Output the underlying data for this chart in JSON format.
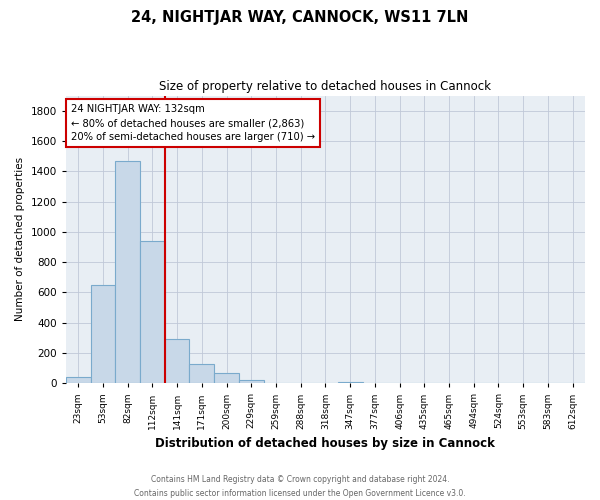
{
  "title": "24, NIGHTJAR WAY, CANNOCK, WS11 7LN",
  "subtitle": "Size of property relative to detached houses in Cannock",
  "xlabel": "Distribution of detached houses by size in Cannock",
  "ylabel": "Number of detached properties",
  "categories": [
    "23sqm",
    "53sqm",
    "82sqm",
    "112sqm",
    "141sqm",
    "171sqm",
    "200sqm",
    "229sqm",
    "259sqm",
    "288sqm",
    "318sqm",
    "347sqm",
    "377sqm",
    "406sqm",
    "435sqm",
    "465sqm",
    "494sqm",
    "524sqm",
    "553sqm",
    "583sqm",
    "612sqm"
  ],
  "values": [
    40,
    650,
    1470,
    940,
    290,
    130,
    65,
    22,
    5,
    0,
    0,
    10,
    0,
    0,
    0,
    0,
    0,
    0,
    0,
    0,
    0
  ],
  "bar_color": "#c8d8e8",
  "bar_edge_color": "#7aaacc",
  "red_line_color": "#cc0000",
  "annotation_line1": "24 NIGHTJAR WAY: 132sqm",
  "annotation_line2": "← 80% of detached houses are smaller (2,863)",
  "annotation_line3": "20% of semi-detached houses are larger (710) →",
  "ylim": [
    0,
    1900
  ],
  "yticks": [
    0,
    200,
    400,
    600,
    800,
    1000,
    1200,
    1400,
    1600,
    1800
  ],
  "footer_line1": "Contains HM Land Registry data © Crown copyright and database right 2024.",
  "footer_line2": "Contains public sector information licensed under the Open Government Licence v3.0.",
  "bg_color": "#ffffff",
  "plot_bg_color": "#e8eef4",
  "grid_color": "#c0c8d8"
}
